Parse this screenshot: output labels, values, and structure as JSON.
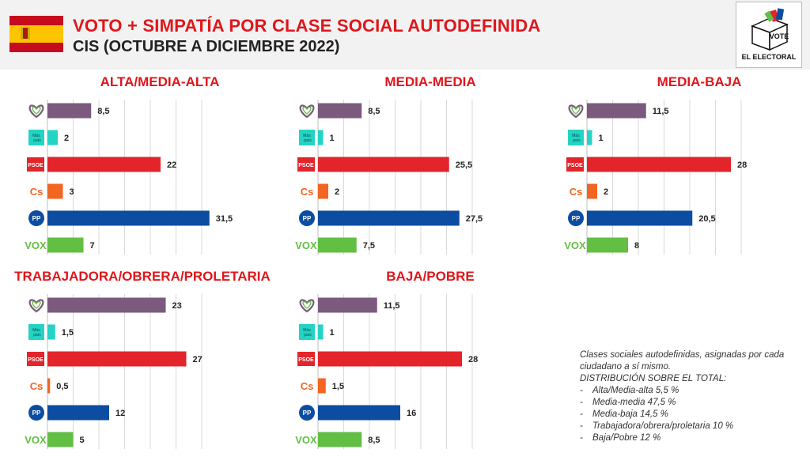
{
  "header": {
    "title": "VOTO + SIMPATÍA POR CLASE SOCIAL AUTODEFINIDA",
    "subtitle": "CIS (OCTUBRE A DICIEMBRE 2022)",
    "logo": {
      "vote_label": "VOTE",
      "brand": "EL ELECTORAL"
    }
  },
  "party_icons": [
    "podemos-heart-icon",
    "mas-pais-icon",
    "psoe-icon",
    "ciudadanos-icon",
    "pp-icon",
    "vox-icon"
  ],
  "icon_text": {
    "mas": "Más",
    "pais": "país",
    "psoe": "PSOE",
    "cs": "Cs",
    "pp": "PP",
    "vox": "VOX"
  },
  "colors": {
    "podemos": "#7b5a7e",
    "mas_pais": "#24d3c4",
    "psoe": "#e3242b",
    "cs": "#f26522",
    "pp": "#0c4da2",
    "vox": "#63be44",
    "title": "#e0161b"
  },
  "chart_data": [
    {
      "type": "bar",
      "title": "ALTA/MEDIA-ALTA",
      "values": [
        8.5,
        2,
        22,
        3,
        31.5,
        7
      ],
      "labels": [
        "8,5",
        "2",
        "22",
        "3",
        "31,5",
        "7"
      ]
    },
    {
      "type": "bar",
      "title": "MEDIA-MEDIA",
      "values": [
        8.5,
        1,
        25.5,
        2,
        27.5,
        7.5
      ],
      "labels": [
        "8,5",
        "1",
        "25,5",
        "2",
        "27,5",
        "7,5"
      ]
    },
    {
      "type": "bar",
      "title": "MEDIA-BAJA",
      "values": [
        11.5,
        1,
        28,
        2,
        20.5,
        8
      ],
      "labels": [
        "11,5",
        "1",
        "28",
        "2",
        "20,5",
        "8"
      ]
    },
    {
      "type": "bar",
      "title": "TRABAJADORA/OBRERA/PROLETARIA",
      "values": [
        23,
        1.5,
        27,
        0.5,
        12,
        5
      ],
      "labels": [
        "23",
        "1,5",
        "27",
        "0,5",
        "12",
        "5"
      ]
    },
    {
      "type": "bar",
      "title": "BAJA/POBRE",
      "values": [
        11.5,
        1,
        28,
        1.5,
        16,
        8.5
      ],
      "labels": [
        "11,5",
        "1",
        "28",
        "1,5",
        "16",
        "8,5"
      ]
    }
  ],
  "note": {
    "intro": "Clases sociales autodefinidas, asignadas por cada ciudadano a sí mismo.",
    "heading": "DISTRIBUCIÓN SOBRE EL TOTAL:",
    "items": [
      "Alta/Media-alta 5,5 %",
      "Media-media 47,5 %",
      "Media-baja 14,5 %",
      "Trabajadora/obrera/proletaria 10 %",
      "Baja/Pobre 12 %"
    ]
  }
}
